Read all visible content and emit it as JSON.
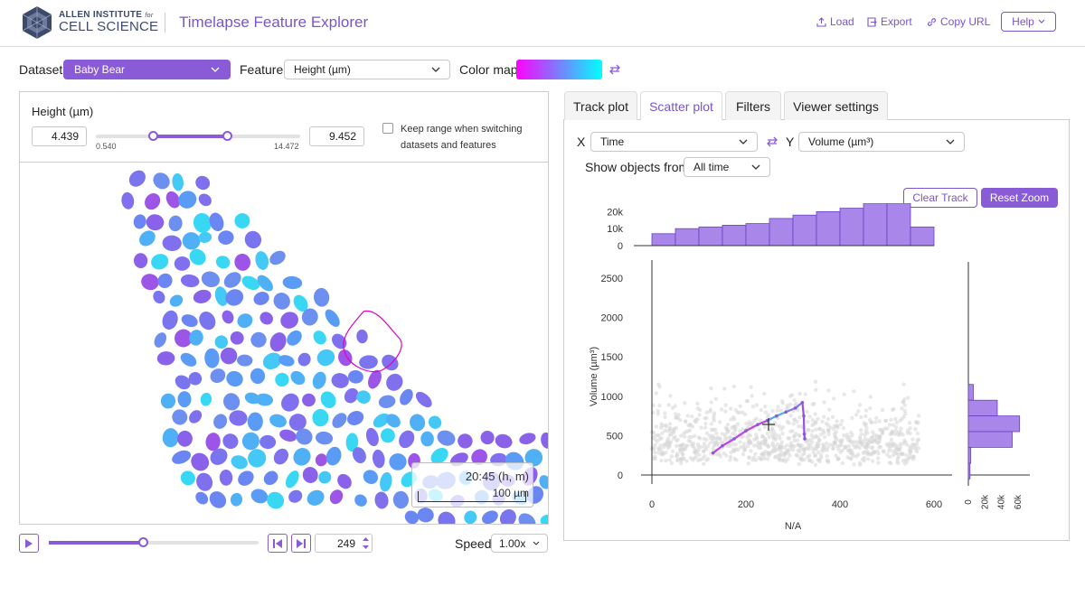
{
  "header": {
    "org_line1": "ALLEN INSTITUTE",
    "org_for": "for",
    "org_line2": "CELL SCIENCE",
    "app_title": "Timelapse Feature Explorer",
    "load_label": "Load",
    "export_label": "Export",
    "copy_url_label": "Copy URL",
    "help_label": "Help"
  },
  "controls": {
    "dataset_label": "Dataset",
    "dataset_value": "Baby Bear",
    "feature_label": "Feature",
    "feature_value": "Height (µm)",
    "colormap_label": "Color map"
  },
  "range": {
    "title": "Height (µm)",
    "min_value": "4.439",
    "max_value": "9.452",
    "slider_min": "0.540",
    "slider_max": "14.472",
    "keep_range_label": "Keep range when switching datasets and features",
    "low_fraction": 0.28,
    "high_fraction": 0.64
  },
  "viewer": {
    "timestamp": "20:45 (h, m)",
    "scale_label": "100 µm"
  },
  "playback": {
    "frame": "249",
    "speed_label": "Speed",
    "speed_value": "1.00x",
    "progress_fraction": 0.45
  },
  "tabs": [
    "Track plot",
    "Scatter plot",
    "Filters",
    "Viewer settings"
  ],
  "scatter": {
    "x_label": "X",
    "x_value": "Time",
    "y_label": "Y",
    "y_value": "Volume (µm³)",
    "show_objects_label": "Show objects from",
    "show_objects_value": "All time",
    "clear_track_label": "Clear Track",
    "reset_zoom_label": "Reset Zoom"
  },
  "colors": {
    "accent": "#8a5bd6",
    "colormap_start": "#ff00ff",
    "colormap_end": "#00ffff",
    "scatter_gray": "#d6d6d6",
    "histogram": "#a987ea"
  },
  "chart_data": {
    "type": "scatter",
    "xlabel": "N/A",
    "ylabel": "Volume (µm³)",
    "xlim": [
      0,
      600
    ],
    "ylim": [
      0,
      2500
    ],
    "x_ticks": [
      "0",
      "200",
      "400",
      "600"
    ],
    "y_ticks": [
      "0",
      "500",
      "1000",
      "1500",
      "2000",
      "2500"
    ],
    "track": {
      "x": [
        130,
        150,
        175,
        200,
        225,
        245,
        265,
        285,
        305,
        320,
        323,
        324,
        325
      ],
      "y": [
        280,
        370,
        460,
        560,
        640,
        690,
        750,
        800,
        850,
        920,
        750,
        520,
        460
      ]
    },
    "top_histogram": {
      "y_ticks": [
        "0",
        "10k",
        "20k"
      ],
      "ymax": 25000,
      "values": [
        7000,
        10000,
        11000,
        12000,
        13000,
        16000,
        18000,
        20000,
        22000,
        25000,
        25000,
        11000
      ]
    },
    "right_histogram": {
      "x_ticks": [
        "0",
        "20k",
        "40k",
        "60k"
      ],
      "xmax": 70000,
      "bins_y": [
        1050,
        850,
        650,
        450,
        250,
        50
      ],
      "values": [
        6000,
        35000,
        62000,
        53000,
        3000,
        2000
      ]
    }
  }
}
